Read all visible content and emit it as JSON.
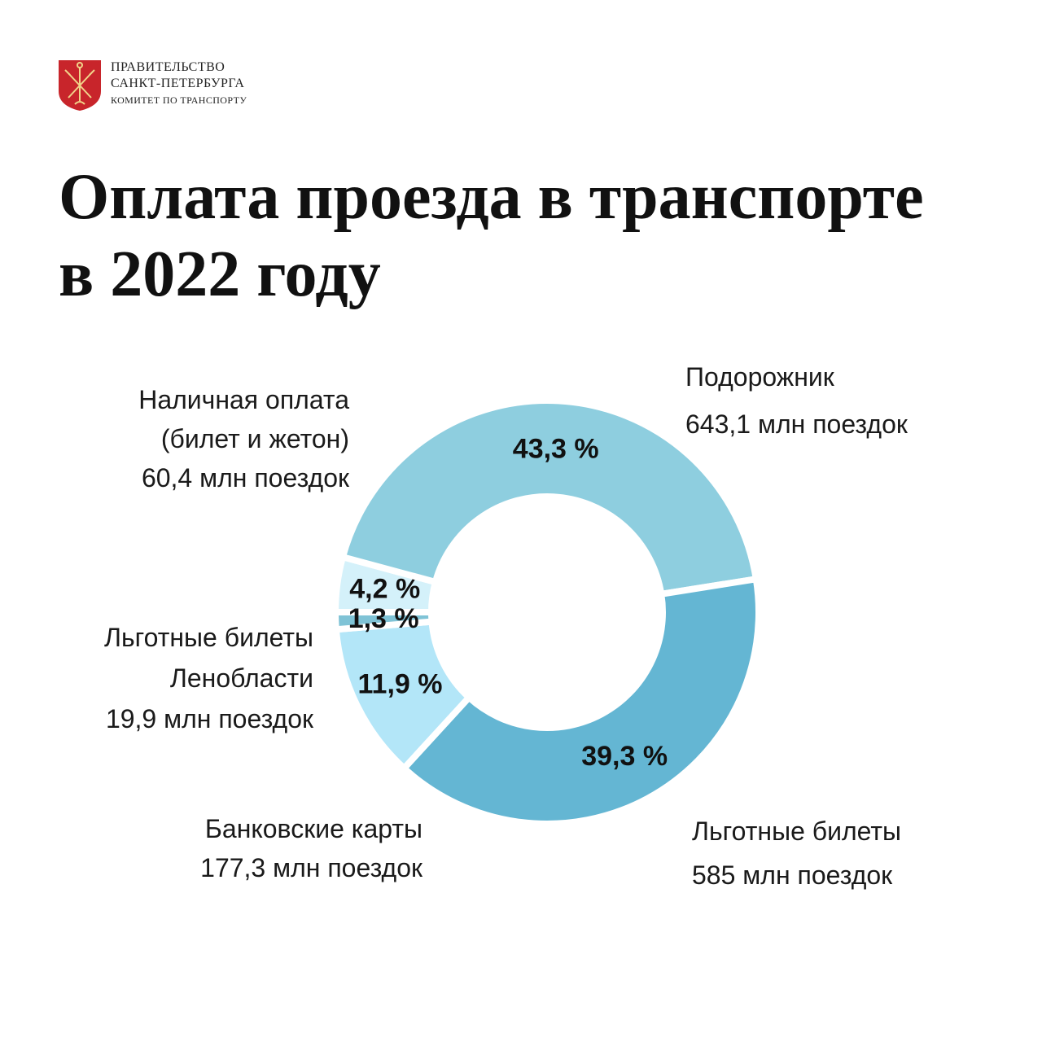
{
  "logo": {
    "line1": "ПРАВИТЕЛЬСТВО",
    "line2": "САНКТ-ПЕТЕРБУРГА",
    "line3": "КОМИТЕТ ПО ТРАНСПОРТУ",
    "emblem_color": "#c8252b"
  },
  "title": {
    "line1": "Оплата проезда в транспорте",
    "line2": "в 2022 году"
  },
  "captions": {
    "podorozhnik": {
      "line1": "Подорожник",
      "line2": "643,1 млн поездок"
    },
    "cash": {
      "line1": "Наличная оплата",
      "line2": "(билет и жетон)",
      "line3": "60,4 млн поездок"
    },
    "lenoblast": {
      "line1": "Льготные билеты",
      "line2": "Ленобласти",
      "line3": "19,9 млн поездок"
    },
    "bank": {
      "line1": "Банковские карты",
      "line2": "177,3 млн поездок"
    },
    "benefit": {
      "line1": "Льготные билеты",
      "line2": "585 млн поездок"
    }
  },
  "chart_data": {
    "type": "pie",
    "donut": true,
    "title": "Оплата проезда в транспорте в 2022 году",
    "unit": "млн поездок",
    "start": "left (9 o'clock), clockwise",
    "slices": [
      {
        "label": "Наличная оплата (билет и жетон)",
        "value": 60.4,
        "percent": 4.2,
        "percent_label": "4,2 %",
        "color": "#d4f1fa"
      },
      {
        "label": "Подорожник",
        "value": 643.1,
        "percent": 43.3,
        "percent_label": "43,3 %",
        "color": "#8ecedf"
      },
      {
        "label": "Льготные билеты",
        "value": 585,
        "percent": 39.3,
        "percent_label": "39,3 %",
        "color": "#64b6d3"
      },
      {
        "label": "Банковские карты",
        "value": 177.3,
        "percent": 11.9,
        "percent_label": "11,9 %",
        "color": "#b3e6f8"
      },
      {
        "label": "Льготные билеты Ленобласти",
        "value": 19.9,
        "percent": 1.3,
        "percent_label": "1,3 %",
        "color": "#7fc3d6"
      }
    ]
  }
}
